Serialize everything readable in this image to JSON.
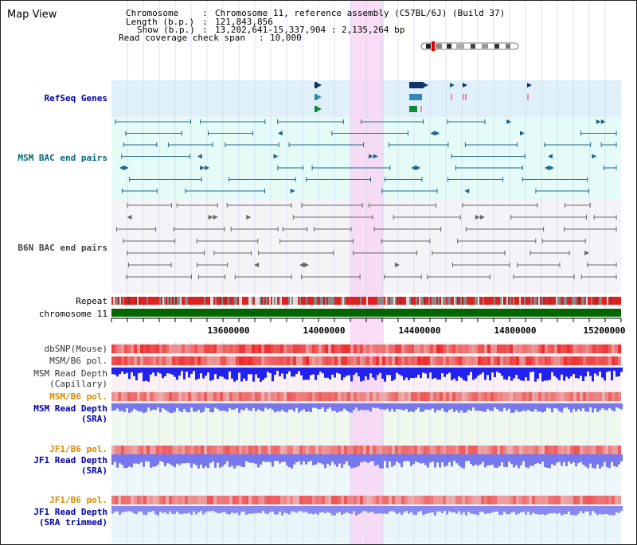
{
  "title": "Map View",
  "info": {
    "chromosome_key": "Chromosome",
    "chromosome_val": "Chromosome 11, reference assembly (C57BL/6J) (Build 37)",
    "length_key": "Length (b.p.)",
    "length_val": "121,843,856",
    "show_key": "Show (b.p.)",
    "show_val": "13,202,641-15,337,904 : 2,135,264 bp",
    "span_key": "Read coverage check span",
    "span_val": "10,000"
  },
  "tracks": {
    "refseq": "RefSeq Genes",
    "msm_bac": "MSM BAC end pairs",
    "b6n_bac": "B6N BAC end pairs",
    "repeat": "Repeat",
    "chromosome": "chromosome 11",
    "dbsnp": "dbSNP(Mouse)",
    "msm_b6_pol_1": "MSM/B6 pol.",
    "msm_read_depth_cap_1": "MSM Read Depth",
    "msm_read_depth_cap_2": "(Capillary)",
    "msm_b6_pol_2": "MSM/B6 pol.",
    "msm_read_depth_sra_1": "MSM Read Depth",
    "msm_read_depth_sra_2": "(SRA)",
    "jf1_b6_pol_1": "JF1/B6 pol.",
    "jf1_read_depth_1": "JF1 Read Depth",
    "jf1_read_depth_2": "(SRA)",
    "jf1_b6_pol_2": "JF1/B6 pol.",
    "jf1_read_depth_trim_1": "JF1 Read Depth",
    "jf1_read_depth_trim_2": "(SRA trimmed)"
  },
  "axis_ticks": [
    "13600000",
    "14000000",
    "14400000",
    "14800000",
    "15200000"
  ],
  "colors": {
    "refseq_bg": "#dff0fa",
    "msm_bg": "#e4fbf8",
    "b6n_bg": "#f4f4f8",
    "highlight": "#f8d6f4",
    "chromosome_bar": "#006600",
    "snp_red": "#ee2222",
    "depth_blue": "#2222ee",
    "sra_blue": "#7777ee",
    "msm_feature": "#226688",
    "b6n_feature": "#666666"
  }
}
